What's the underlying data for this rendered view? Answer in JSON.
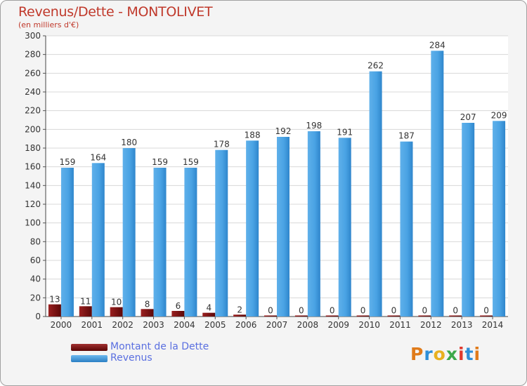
{
  "chart_data": {
    "type": "bar",
    "title": "Revenus/Dette - MONTOLIVET",
    "subtitle": "(en milliers d'€)",
    "categories": [
      "2000",
      "2001",
      "2002",
      "2003",
      "2004",
      "2005",
      "2006",
      "2007",
      "2008",
      "2009",
      "2010",
      "2011",
      "2012",
      "2013",
      "2014"
    ],
    "series": [
      {
        "name": "Montant de la Dette",
        "color": "#7b0f0f",
        "values": [
          13,
          11,
          10,
          8,
          6,
          4,
          2,
          0,
          0,
          0,
          0,
          0,
          0,
          0,
          0
        ]
      },
      {
        "name": "Revenus",
        "color": "#3d97db",
        "values": [
          159,
          164,
          180,
          159,
          159,
          178,
          188,
          192,
          198,
          191,
          262,
          187,
          284,
          207,
          209
        ]
      }
    ],
    "ylim": [
      0,
      300
    ],
    "yticks": [
      0,
      20,
      40,
      60,
      80,
      100,
      120,
      140,
      160,
      180,
      200,
      220,
      240,
      260,
      280,
      300
    ],
    "grid": true,
    "legend": "bottom-left"
  },
  "logo": {
    "text": "Proxiti",
    "colors": [
      "#e07b1a",
      "#2f8fd8",
      "#e8b020",
      "#3da84a",
      "#e03a2f",
      "#2f8fd8",
      "#e07b1a"
    ]
  }
}
